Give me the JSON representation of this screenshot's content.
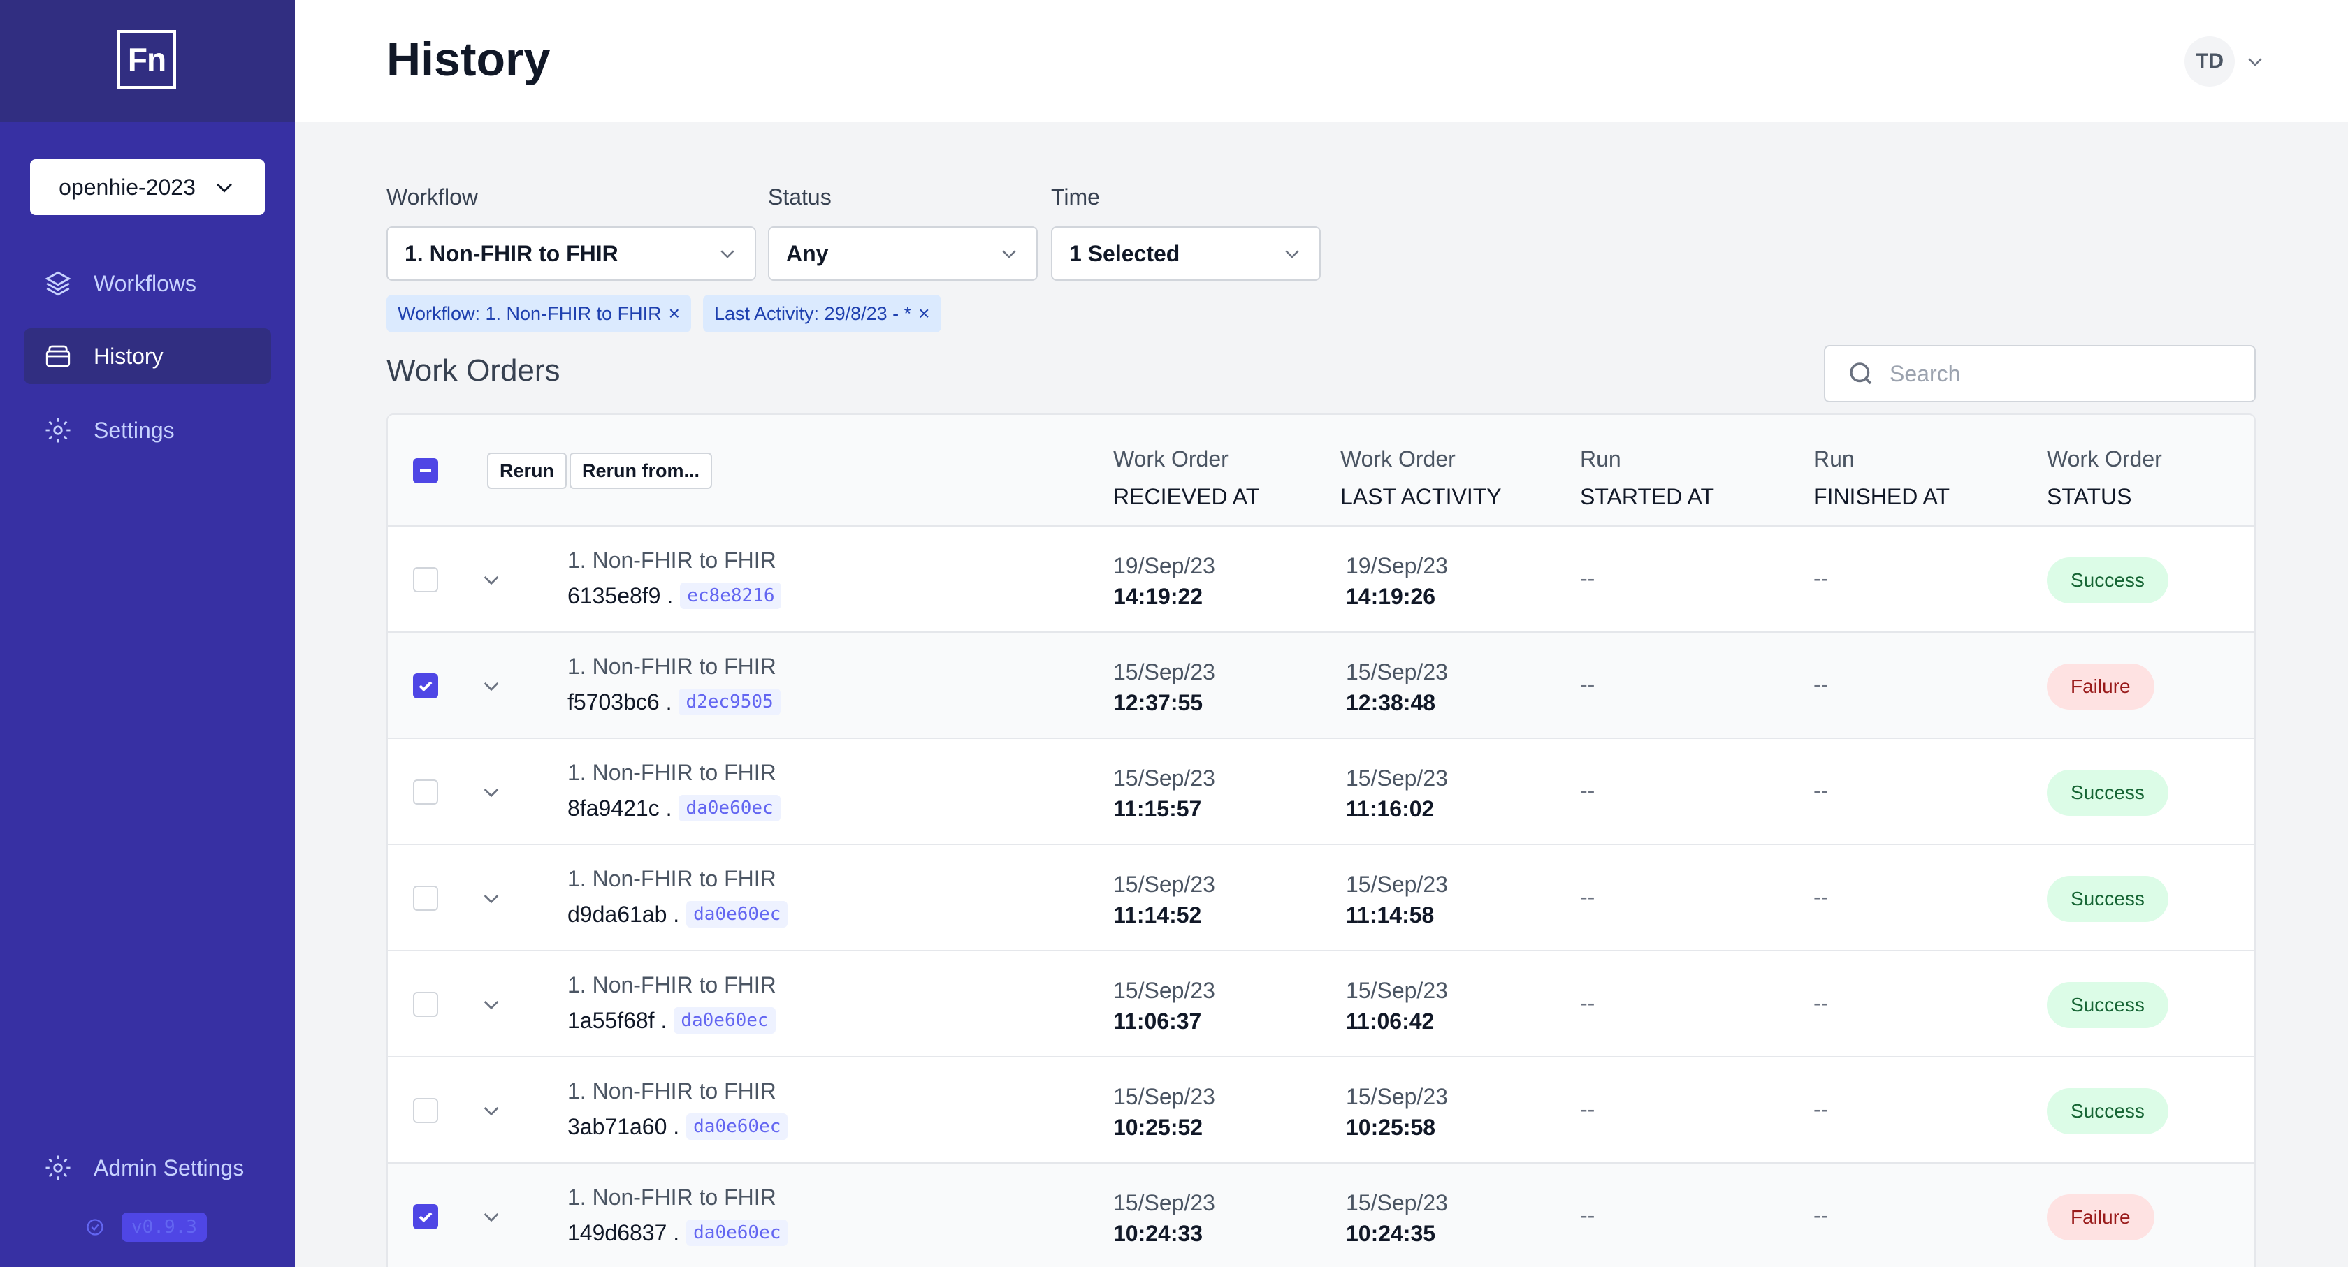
{
  "sidebar": {
    "logo": "Fn",
    "project": "openhie-2023",
    "nav": [
      {
        "label": "Workflows",
        "icon": "layers-icon"
      },
      {
        "label": "History",
        "icon": "archive-icon"
      },
      {
        "label": "Settings",
        "icon": "gear-icon"
      }
    ],
    "admin_label": "Admin Settings",
    "version": "v0.9.3"
  },
  "header": {
    "title": "History",
    "user_initials": "TD"
  },
  "filters": {
    "workflow_label": "Workflow",
    "workflow_value": "1. Non-FHIR to FHIR",
    "status_label": "Status",
    "status_value": "Any",
    "time_label": "Time",
    "time_value": "1 Selected",
    "chips": [
      {
        "label": "Workflow: 1. Non-FHIR to FHIR"
      },
      {
        "label": "Last Activity: 29/8/23 - *"
      }
    ],
    "chip_close": "×"
  },
  "work_orders": {
    "title": "Work Orders",
    "search_placeholder": "Search",
    "rerun_label": "Rerun",
    "rerun_from_label": "Rerun from...",
    "columns": [
      {
        "l1": "Work Order",
        "l2": "RECIEVED AT"
      },
      {
        "l1": "Work Order",
        "l2": "LAST ACTIVITY"
      },
      {
        "l1": "Run",
        "l2": "STARTED AT"
      },
      {
        "l1": "Run",
        "l2": "FINISHED AT"
      },
      {
        "l1": "Work Order",
        "l2": "STATUS"
      }
    ],
    "rows": [
      {
        "checked": false,
        "workflow": "1. Non-FHIR to FHIR",
        "id": "6135e8f9 .",
        "hash": "ec8e8216",
        "received_date": "19/Sep/23",
        "received_time": "14:19:22",
        "activity_date": "19/Sep/23",
        "activity_time": "14:19:26",
        "started": "--",
        "finished": "--",
        "status": "Success"
      },
      {
        "checked": true,
        "workflow": "1. Non-FHIR to FHIR",
        "id": "f5703bc6 .",
        "hash": "d2ec9505",
        "received_date": "15/Sep/23",
        "received_time": "12:37:55",
        "activity_date": "15/Sep/23",
        "activity_time": "12:38:48",
        "started": "--",
        "finished": "--",
        "status": "Failure"
      },
      {
        "checked": false,
        "workflow": "1. Non-FHIR to FHIR",
        "id": "8fa9421c .",
        "hash": "da0e60ec",
        "received_date": "15/Sep/23",
        "received_time": "11:15:57",
        "activity_date": "15/Sep/23",
        "activity_time": "11:16:02",
        "started": "--",
        "finished": "--",
        "status": "Success"
      },
      {
        "checked": false,
        "workflow": "1. Non-FHIR to FHIR",
        "id": "d9da61ab .",
        "hash": "da0e60ec",
        "received_date": "15/Sep/23",
        "received_time": "11:14:52",
        "activity_date": "15/Sep/23",
        "activity_time": "11:14:58",
        "started": "--",
        "finished": "--",
        "status": "Success"
      },
      {
        "checked": false,
        "workflow": "1. Non-FHIR to FHIR",
        "id": "1a55f68f .",
        "hash": "da0e60ec",
        "received_date": "15/Sep/23",
        "received_time": "11:06:37",
        "activity_date": "15/Sep/23",
        "activity_time": "11:06:42",
        "started": "--",
        "finished": "--",
        "status": "Success"
      },
      {
        "checked": false,
        "workflow": "1. Non-FHIR to FHIR",
        "id": "3ab71a60 .",
        "hash": "da0e60ec",
        "received_date": "15/Sep/23",
        "received_time": "10:25:52",
        "activity_date": "15/Sep/23",
        "activity_time": "10:25:58",
        "started": "--",
        "finished": "--",
        "status": "Success"
      },
      {
        "checked": true,
        "workflow": "1. Non-FHIR to FHIR",
        "id": "149d6837 .",
        "hash": "da0e60ec",
        "received_date": "15/Sep/23",
        "received_time": "10:24:33",
        "activity_date": "15/Sep/23",
        "activity_time": "10:24:35",
        "started": "--",
        "finished": "--",
        "status": "Failure"
      }
    ]
  },
  "colors": {
    "sidebar": "#3730a3",
    "sidebar_top": "#312e81",
    "accent": "#4f46e5",
    "success_bg": "#dcfce7",
    "failure_bg": "#fee2e2"
  }
}
